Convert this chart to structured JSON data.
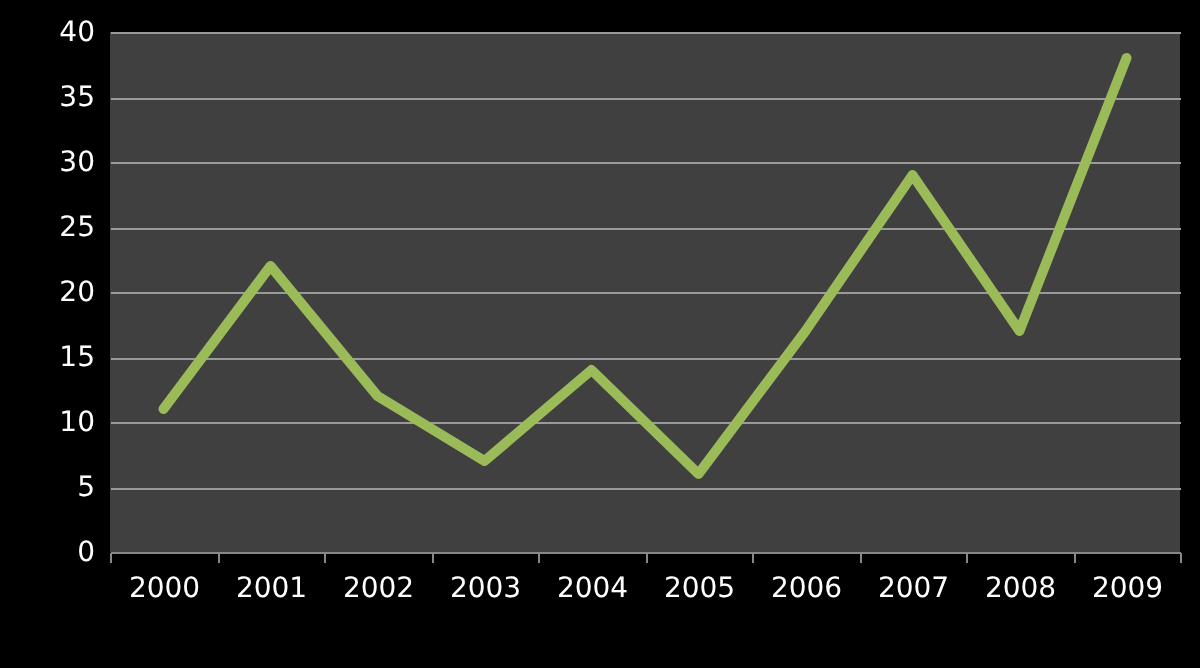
{
  "chart_data": {
    "type": "line",
    "categories": [
      "2000",
      "2001",
      "2002",
      "2003",
      "2004",
      "2005",
      "2006",
      "2007",
      "2008",
      "2009"
    ],
    "series": [
      {
        "color": "#9bbb59",
        "values": [
          11,
          22,
          12,
          7,
          14,
          6,
          17,
          29,
          17,
          38
        ]
      }
    ],
    "ylim": [
      0,
      40
    ],
    "yticks": [
      0,
      5,
      10,
      15,
      20,
      25,
      30,
      35,
      40
    ],
    "grid": "y",
    "legend": false,
    "marker": "none",
    "line_style": "solid"
  }
}
